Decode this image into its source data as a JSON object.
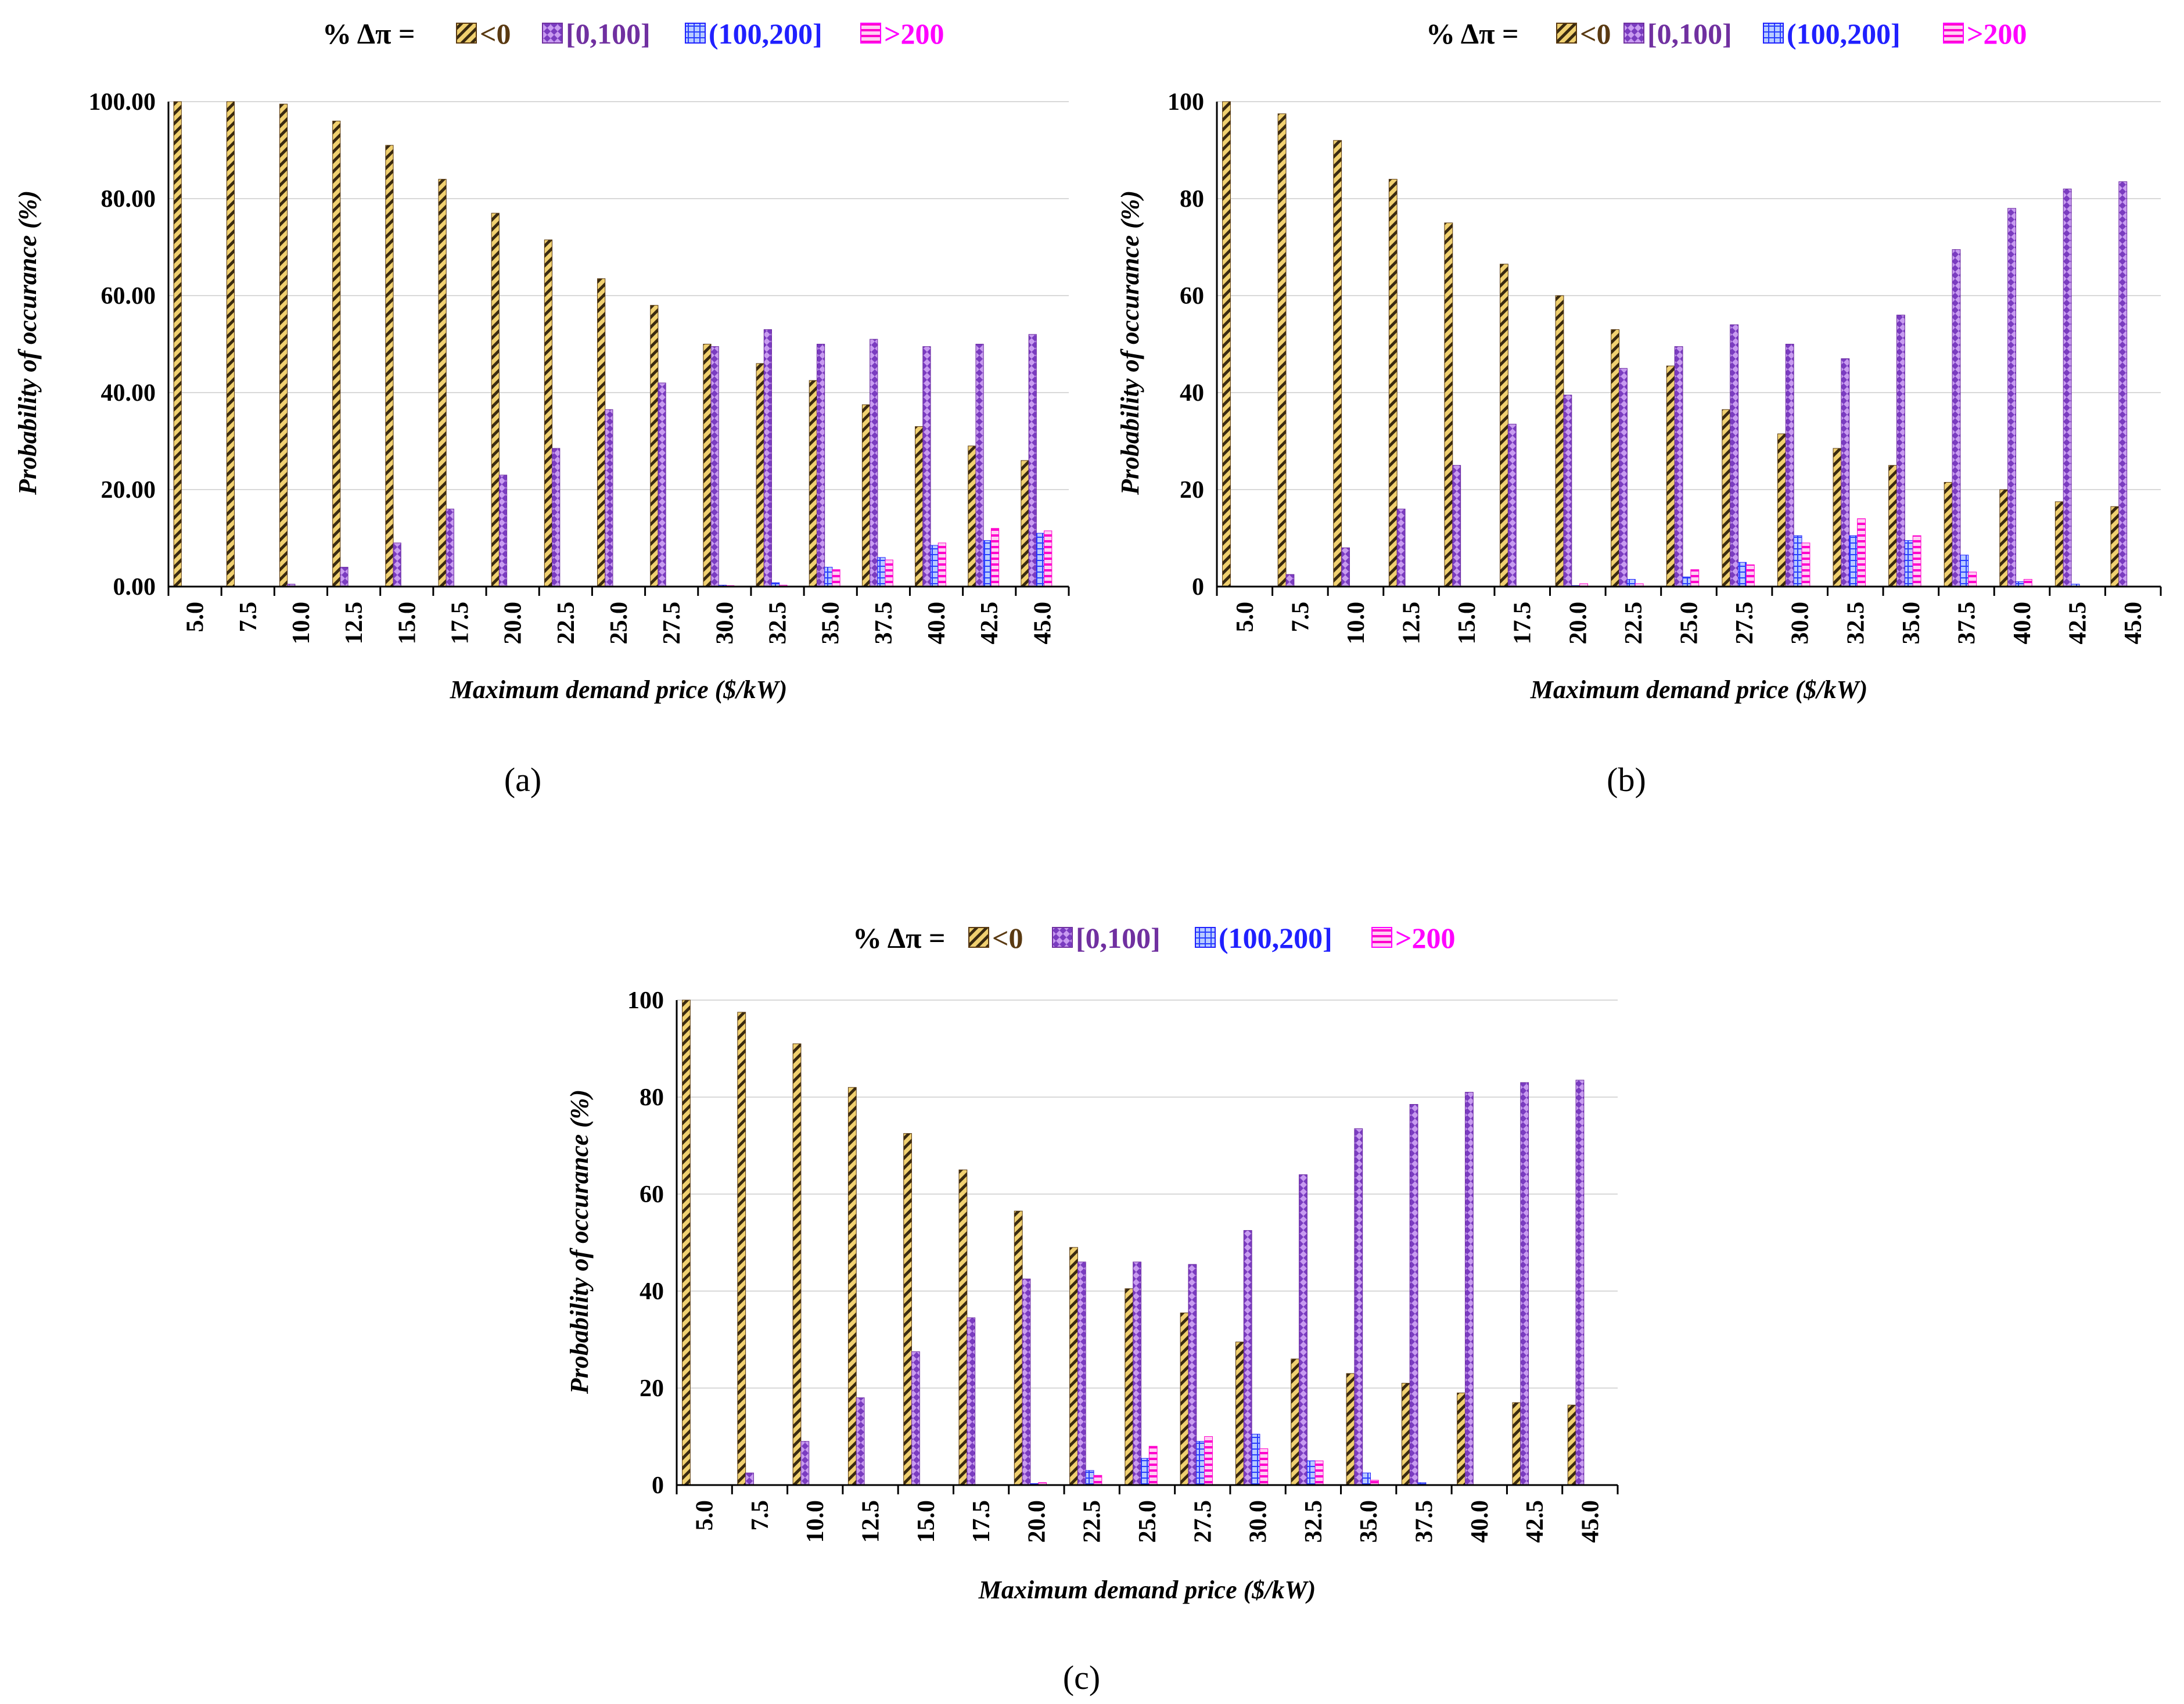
{
  "legend": {
    "prefix": "% Δπ =",
    "entries": [
      {
        "label": "<0",
        "color": "#5a3a12",
        "fill": "#f0d070"
      },
      {
        "label": "[0,100]",
        "color": "#7030a0",
        "fill": "#c89bf0"
      },
      {
        "label": "(100,200]",
        "color": "#2020ff",
        "fill": "#9db8ff"
      },
      {
        "label": ">200",
        "color": "#ff00ff",
        "fill": "#ff80e0"
      }
    ]
  },
  "chart_data": [
    {
      "type": "bar",
      "panel_label": "(a)",
      "xlabel": "Maximum demand price ($/kW)",
      "ylabel": "Probability of occurance (%)",
      "ylim": [
        0,
        100
      ],
      "yticks": [
        "0.00",
        "20.00",
        "40.00",
        "60.00",
        "80.00",
        "100.00"
      ],
      "categories": [
        "5.0",
        "7.5",
        "10.0",
        "12.5",
        "15.0",
        "17.5",
        "20.0",
        "22.5",
        "25.0",
        "27.5",
        "30.0",
        "32.5",
        "35.0",
        "37.5",
        "40.0",
        "42.5",
        "45.0"
      ],
      "series": [
        {
          "name": "<0",
          "values": [
            100,
            100,
            99.5,
            96,
            91,
            84,
            77,
            71.5,
            63.5,
            58,
            50,
            46,
            42.5,
            37.5,
            33,
            29,
            26
          ]
        },
        {
          "name": "[0,100]",
          "values": [
            0,
            0,
            0.5,
            4,
            9,
            16,
            23,
            28.5,
            36.5,
            42,
            49.5,
            53,
            50,
            51,
            49.5,
            50,
            52
          ]
        },
        {
          "name": "(100,200]",
          "values": [
            0,
            0,
            0,
            0,
            0,
            0,
            0,
            0,
            0,
            0,
            0.3,
            0.8,
            4,
            6,
            8.5,
            9.5,
            11
          ]
        },
        {
          "name": ">200",
          "values": [
            0,
            0,
            0,
            0,
            0,
            0,
            0,
            0,
            0,
            0,
            0.2,
            0.3,
            3.5,
            5.5,
            9,
            12,
            11.5
          ]
        }
      ],
      "grid": true,
      "legend_position": "top"
    },
    {
      "type": "bar",
      "panel_label": "(b)",
      "xlabel": "Maximum demand price ($/kW)",
      "ylabel": "Probability of occurance (%)",
      "ylim": [
        0,
        100
      ],
      "yticks": [
        "0",
        "20",
        "40",
        "60",
        "80",
        "100"
      ],
      "categories": [
        "5.0",
        "7.5",
        "10.0",
        "12.5",
        "15.0",
        "17.5",
        "20.0",
        "22.5",
        "25.0",
        "27.5",
        "30.0",
        "32.5",
        "35.0",
        "37.5",
        "40.0",
        "42.5",
        "45.0"
      ],
      "series": [
        {
          "name": "<0",
          "values": [
            100,
            97.5,
            92,
            84,
            75,
            66.5,
            60,
            53,
            45.5,
            36.5,
            31.5,
            28.5,
            25,
            21.5,
            20,
            17.5,
            16.5
          ]
        },
        {
          "name": "[0,100]",
          "values": [
            0,
            2.5,
            8,
            16,
            25,
            33.5,
            39.5,
            45,
            49.5,
            54,
            50,
            47,
            56,
            69.5,
            78,
            82,
            83.5
          ]
        },
        {
          "name": "(100,200]",
          "values": [
            0,
            0,
            0,
            0,
            0,
            0,
            0.2,
            1.5,
            2,
            5,
            10.5,
            10.5,
            9.5,
            6.5,
            1,
            0.5,
            0
          ]
        },
        {
          "name": ">200",
          "values": [
            0,
            0,
            0,
            0,
            0,
            0,
            0.6,
            0.6,
            3.5,
            4.5,
            9,
            14,
            10.5,
            3,
            1.5,
            0,
            0
          ]
        }
      ],
      "grid": true,
      "legend_position": "top"
    },
    {
      "type": "bar",
      "panel_label": "(c)",
      "xlabel": "Maximum demand price ($/kW)",
      "ylabel": "Probability of occurance (%)",
      "ylim": [
        0,
        100
      ],
      "yticks": [
        "0",
        "20",
        "40",
        "60",
        "80",
        "100"
      ],
      "categories": [
        "5.0",
        "7.5",
        "10.0",
        "12.5",
        "15.0",
        "17.5",
        "20.0",
        "22.5",
        "25.0",
        "27.5",
        "30.0",
        "32.5",
        "35.0",
        "37.5",
        "40.0",
        "42.5",
        "45.0"
      ],
      "series": [
        {
          "name": "<0",
          "values": [
            100,
            97.5,
            91,
            82,
            72.5,
            65,
            56.5,
            49,
            40.5,
            35.5,
            29.5,
            26,
            23,
            21,
            19,
            17,
            16.5
          ]
        },
        {
          "name": "[0,100]",
          "values": [
            0,
            2.5,
            9,
            18,
            27.5,
            34.5,
            42.5,
            46,
            46,
            45.5,
            52.5,
            64,
            73.5,
            78.5,
            81,
            83,
            83.5
          ]
        },
        {
          "name": "(100,200]",
          "values": [
            0,
            0,
            0,
            0,
            0,
            0,
            0.3,
            3,
            5.5,
            9,
            10.5,
            5,
            2.5,
            0.5,
            0,
            0,
            0
          ]
        },
        {
          "name": ">200",
          "values": [
            0,
            0,
            0,
            0,
            0,
            0,
            0.5,
            2,
            8,
            10,
            7.5,
            5,
            1,
            0,
            0,
            0,
            0
          ]
        }
      ],
      "grid": true,
      "legend_position": "top"
    }
  ]
}
